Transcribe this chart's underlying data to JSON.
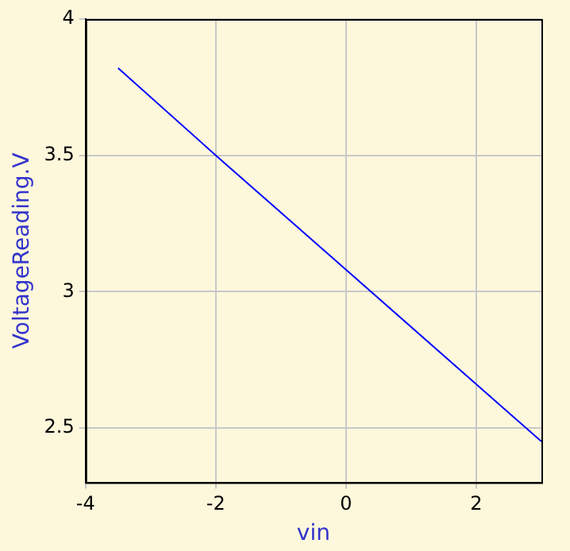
{
  "chart_data": {
    "type": "line",
    "xlabel": "vin",
    "ylabel": "VoltageReading.V",
    "x": [
      -3.5,
      -2,
      0,
      2,
      3
    ],
    "series": [
      {
        "color": "#0000ff",
        "values": [
          3.82,
          3.5,
          3.08,
          2.66,
          2.45
        ]
      }
    ],
    "xlim": [
      -4,
      3
    ],
    "xticks": [
      -4,
      -2,
      0,
      2
    ],
    "ylim": [
      2.3,
      4
    ],
    "yticks": [
      2.5,
      3,
      3.5,
      4
    ],
    "grid": true,
    "legend": false,
    "marker": "none",
    "line_style": "solid"
  }
}
